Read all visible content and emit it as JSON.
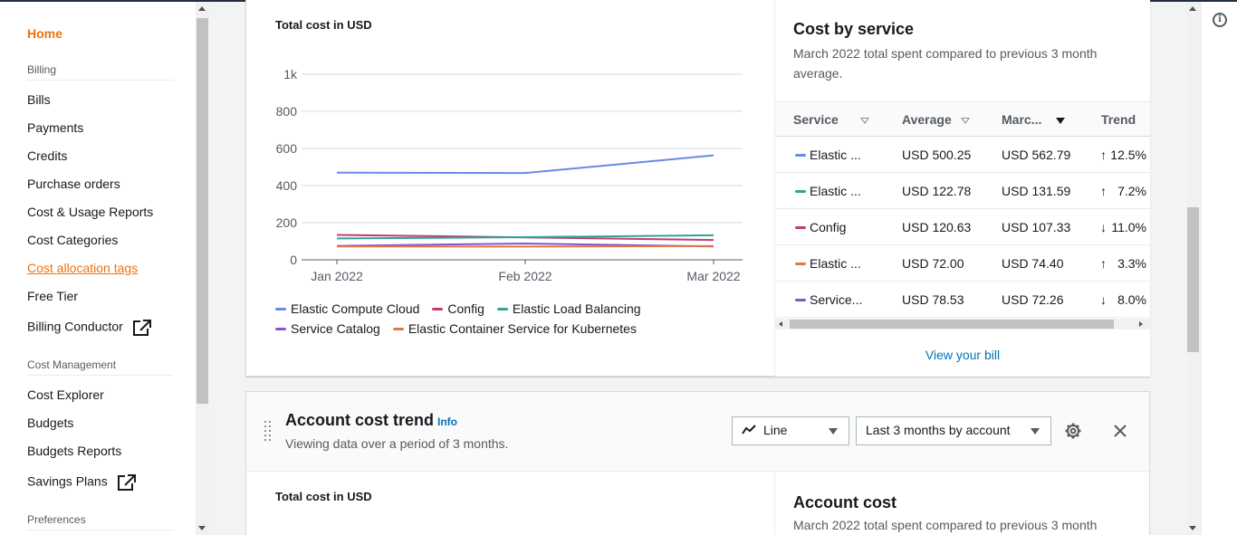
{
  "sidebar": {
    "home": "Home",
    "billing_section": "Billing",
    "billing_items": [
      "Bills",
      "Payments",
      "Credits",
      "Purchase orders",
      "Cost & Usage Reports",
      "Cost Categories",
      "Cost allocation tags",
      "Free Tier",
      "Billing Conductor"
    ],
    "cost_mgmt_section": "Cost Management",
    "cost_mgmt_items": [
      "Cost Explorer",
      "Budgets",
      "Budgets Reports",
      "Savings Plans"
    ],
    "preferences_section": "Preferences"
  },
  "widget1": {
    "chart_title": "Total cost in USD",
    "chart_data": {
      "type": "line",
      "title": "Total cost in USD",
      "categories": [
        "Jan 2022",
        "Feb 2022",
        "Mar 2022"
      ],
      "y_ticks": [
        "0",
        "200",
        "400",
        "600",
        "800",
        "1k"
      ],
      "ylim": [
        0,
        1000
      ],
      "grid": true,
      "legend": "bottom",
      "series": [
        {
          "name": "Elastic Compute Cloud",
          "color": "#688ae8",
          "values": [
            470,
            468,
            563
          ]
        },
        {
          "name": "Config",
          "color": "#c33d69",
          "values": [
            134,
            121,
            107
          ]
        },
        {
          "name": "Elastic Load Balancing",
          "color": "#2ea597",
          "values": [
            115,
            122,
            132
          ]
        },
        {
          "name": "Service Catalog",
          "color": "#8456ce",
          "values": [
            75,
            88,
            72
          ]
        },
        {
          "name": "Elastic Container Service for Kubernetes",
          "color": "#e07941",
          "values": [
            72,
            71,
            74
          ]
        }
      ]
    },
    "cost_panel": {
      "title": "Cost by service",
      "subtitle": "March 2022 total spent compared to previous 3 month average.",
      "columns": [
        "Service",
        "Average",
        "Marc...",
        "Trend"
      ],
      "rows": [
        {
          "service": "Elastic ...",
          "color": "#688ae8",
          "average": "USD 500.25",
          "march": "USD 562.79",
          "arrow": "↑",
          "trend": "12.5%"
        },
        {
          "service": "Elastic ...",
          "color": "#2ea597",
          "average": "USD 122.78",
          "march": "USD 131.59",
          "arrow": "↑",
          "trend": "7.2%"
        },
        {
          "service": "Config",
          "color": "#c33d69",
          "average": "USD 120.63",
          "march": "USD 107.33",
          "arrow": "↓",
          "trend": "11.0%"
        },
        {
          "service": "Elastic ...",
          "color": "#e07941",
          "average": "USD 72.00",
          "march": "USD 74.40",
          "arrow": "↑",
          "trend": "3.3%"
        },
        {
          "service": "Service...",
          "color": "#8456ce",
          "average": "USD 78.53",
          "march": "USD 72.26",
          "arrow": "↓",
          "trend": "8.0%"
        }
      ],
      "view_bill": "View your bill"
    }
  },
  "widget2": {
    "title": "Account cost trend",
    "info": "Info",
    "subtitle": "Viewing data over a period of 3 months.",
    "chart_type_select": "Line",
    "range_select": "Last 3 months by account",
    "chart_title": "Total cost in USD",
    "account_title": "Account cost",
    "account_sub": "March 2022 total spent compared to previous 3 month"
  }
}
